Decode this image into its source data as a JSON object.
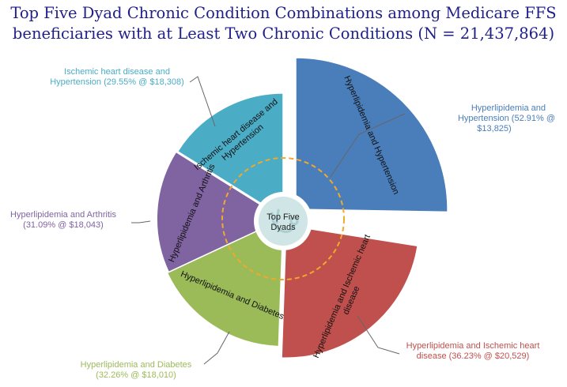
{
  "chart_data": {
    "type": "pie",
    "title_lines": [
      "Top Five Dyad Chronic Condition Combinations among Medicare FFS",
      "beneficiaries with at Least Two Chronic Conditions (N = 21,437,864)"
    ],
    "center_label": [
      "Top Five",
      "Dyads"
    ],
    "slices": [
      {
        "name": "Hyperlipidemia and Hypertension",
        "percent": 52.91,
        "cost": 13825,
        "label_lines": [
          "Hyperlipidemia and",
          "Hypertension (52.91% @",
          "$13,825)"
        ],
        "color": "#4a7ebb"
      },
      {
        "name": "Hyperlipidemia and Ischemic heart disease",
        "percent": 36.23,
        "cost": 20529,
        "label_lines": [
          "Hyperlipidemia and Ischemic heart",
          "disease (36.23% @ $20,529)"
        ],
        "color": "#c0504d"
      },
      {
        "name": "Hyperlipidemia and Diabetes",
        "percent": 32.26,
        "cost": 18010,
        "label_lines": [
          "Hyperlipidemia and Diabetes",
          "(32.26% @ $18,010)"
        ],
        "color": "#9bbb59"
      },
      {
        "name": "Hyperlipidemia and Arthritis",
        "percent": 31.09,
        "cost": 18043,
        "label_lines": [
          "Hyperlipidemia and Arthritis",
          "(31.09% @ $18,043)"
        ],
        "color": "#8064a2"
      },
      {
        "name": "Ischemic heart disease and Hypertension",
        "percent": 29.55,
        "cost": 18308,
        "label_lines": [
          "Ischemic heart disease and",
          "Hypertension (29.55% @ $18,308)"
        ],
        "color": "#4bacc6"
      }
    ]
  }
}
